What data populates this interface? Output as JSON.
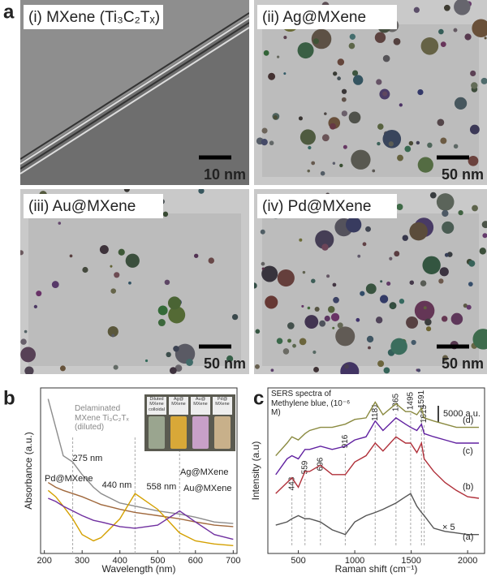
{
  "panel_a": {
    "label": "a",
    "images": [
      {
        "label": "(i)  MXene (Ti₃C₂Tₓ)",
        "scale": "10 nm"
      },
      {
        "label": "(ii)  Ag@MXene",
        "scale": "50 nm"
      },
      {
        "label": "(iii) Au@MXene",
        "scale": "50 nm"
      },
      {
        "label": "(iv) Pd@MXene",
        "scale": "50 nm"
      }
    ]
  },
  "chart_data": [
    {
      "type": "line",
      "label": "b",
      "xlabel": "Wavelength (nm)",
      "ylabel": "Absorbance (a.u.)",
      "x": [
        210,
        230,
        250,
        275,
        300,
        330,
        350,
        400,
        440,
        500,
        558,
        600,
        650,
        700
      ],
      "xlim": [
        190,
        710
      ],
      "xticks": [
        200,
        300,
        400,
        500,
        600,
        700
      ],
      "ylim": [
        0,
        1.05
      ],
      "series": [
        {
          "name": "Delaminated MXene Ti₃C₂Tₓ (diluted)",
          "color": "#8c8c8c",
          "values": [
            0.98,
            0.8,
            0.62,
            0.58,
            0.5,
            0.42,
            0.38,
            0.32,
            0.3,
            0.27,
            0.25,
            0.23,
            0.2,
            0.19
          ]
        },
        {
          "name": "Pd@MXene",
          "color": "#a0683c",
          "values": [
            0.45,
            0.42,
            0.4,
            0.38,
            0.36,
            0.33,
            0.31,
            0.28,
            0.26,
            0.24,
            0.22,
            0.2,
            0.18,
            0.17
          ]
        },
        {
          "name": "Ag@MXene",
          "color": "#d4a000",
          "values": [
            0.4,
            0.36,
            0.3,
            0.22,
            0.12,
            0.08,
            0.1,
            0.22,
            0.38,
            0.28,
            0.13,
            0.08,
            0.06,
            0.05
          ]
        },
        {
          "name": "Au@MXene",
          "color": "#7030a0",
          "values": [
            0.35,
            0.33,
            0.3,
            0.27,
            0.24,
            0.21,
            0.2,
            0.17,
            0.16,
            0.18,
            0.27,
            0.2,
            0.12,
            0.09
          ]
        }
      ],
      "annotations": [
        {
          "value": 275,
          "label": "275 nm"
        },
        {
          "value": 440,
          "label": "440 nm"
        },
        {
          "value": 558,
          "label": "558 nm"
        }
      ],
      "inset_labels": [
        "Diluted MXene colloidal",
        "Ag@ MXene",
        "Au@ MXene",
        "Pd@ MXene"
      ]
    },
    {
      "type": "line",
      "label": "c",
      "xlabel": "Raman shift (cm⁻¹)",
      "ylabel": "Intensity (a.u)",
      "title": "SERS spectra of Methylene blue, (10⁻⁶ M)",
      "x": [
        300,
        400,
        443,
        500,
        559,
        600,
        696,
        800,
        916,
        1000,
        1100,
        1181,
        1250,
        1365,
        1450,
        1495,
        1550,
        1591,
        1615,
        1700,
        1800,
        1900,
        2000,
        2100
      ],
      "xlim": [
        230,
        2150
      ],
      "xticks": [
        500,
        1000,
        1500,
        2000
      ],
      "ylim": [
        0,
        105
      ],
      "series": [
        {
          "name": "(a)",
          "color": "#555555",
          "values": [
            18,
            20,
            22,
            24,
            22,
            22,
            20,
            15,
            12,
            20,
            24,
            26,
            28,
            32,
            36,
            38,
            30,
            26,
            24,
            16,
            14,
            13,
            12,
            12
          ]
        },
        {
          "name": "(b)",
          "color": "#b0303a",
          "values": [
            38,
            45,
            48,
            42,
            52,
            52,
            56,
            50,
            50,
            58,
            62,
            70,
            65,
            74,
            70,
            70,
            64,
            70,
            60,
            52,
            45,
            40,
            36,
            35
          ]
        },
        {
          "name": "(c)",
          "color": "#6020a0",
          "values": [
            50,
            60,
            62,
            60,
            66,
            66,
            68,
            66,
            68,
            72,
            74,
            84,
            78,
            86,
            82,
            80,
            78,
            82,
            76,
            74,
            72,
            70,
            70,
            70
          ]
        },
        {
          "name": "(d)",
          "color": "#8a8a40",
          "values": [
            62,
            70,
            74,
            72,
            76,
            78,
            80,
            80,
            82,
            85,
            86,
            96,
            88,
            95,
            90,
            90,
            88,
            92,
            86,
            84,
            82,
            80,
            80,
            80
          ]
        }
      ],
      "peaks": [
        443,
        559,
        696,
        916,
        1181,
        1365,
        1495,
        1591,
        1615
      ],
      "scale_bar": "5000 a.u.",
      "multiplier": "× 5"
    }
  ]
}
